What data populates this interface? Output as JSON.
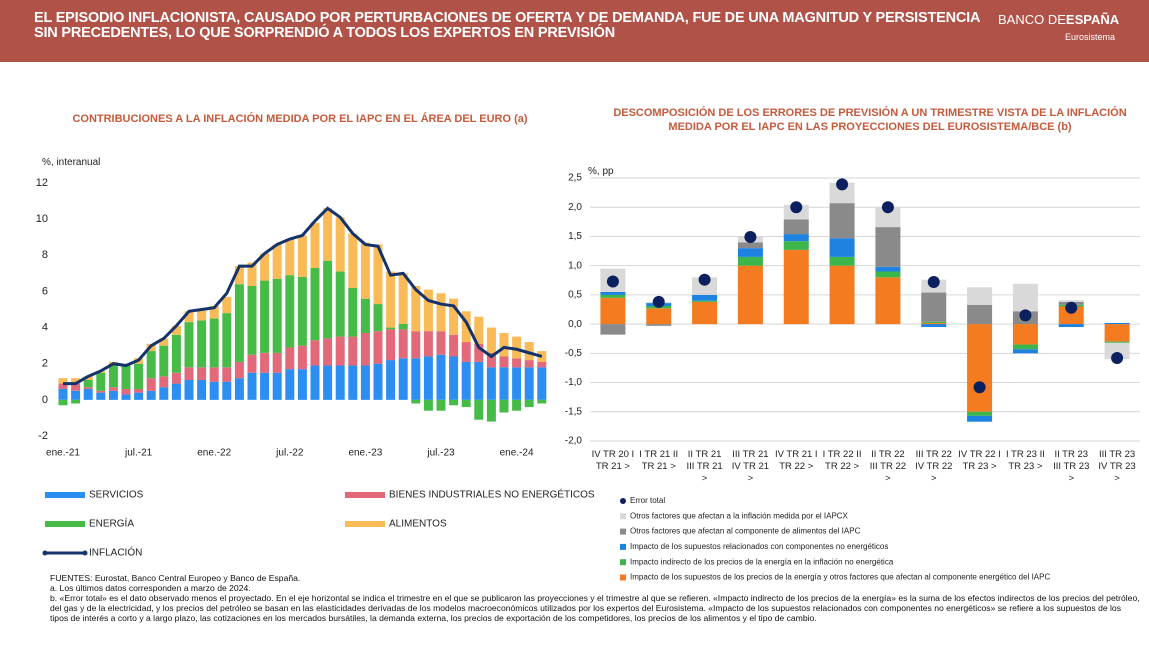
{
  "header": {
    "title": "EL EPISODIO INFLACIONISTA, CAUSADO POR PERTURBACIONES DE OFERTA Y DE DEMANDA, FUE DE UNA MAGNITUD Y PERSISTENCIA SIN PRECEDENTES, LO QUE SORPRENDIÓ A TODOS LOS EXPERTOS EN PREVISIÓN",
    "brand": "BANCO DE",
    "brand_bold": "ESPAÑA",
    "sub": "Eurosistema"
  },
  "chart_data": [
    {
      "type": "bar",
      "stacked": true,
      "title": "CONTRIBUCIONES A LA INFLACIÓN MEDIDA POR EL IAPC EN EL ÁREA DEL EURO (a)",
      "y_label": "%, interanual",
      "categories": [
        "ene.-21",
        null,
        null,
        null,
        null,
        null,
        "jul.-21",
        null,
        null,
        null,
        null,
        null,
        "ene.-22",
        null,
        null,
        null,
        null,
        null,
        "jul.-22",
        null,
        null,
        null,
        null,
        null,
        "ene.-23",
        null,
        null,
        null,
        null,
        null,
        "jul.-23",
        null,
        null,
        null,
        null,
        null,
        "ene.-24",
        null,
        null
      ],
      "series": [
        {
          "name": "SERVICIOS",
          "color": "#2b8ef0",
          "values": [
            0.6,
            0.5,
            0.6,
            0.4,
            0.5,
            0.3,
            0.4,
            0.5,
            0.7,
            0.9,
            1.1,
            1.1,
            1.0,
            1.0,
            1.2,
            1.5,
            1.5,
            1.5,
            1.7,
            1.7,
            1.9,
            1.9,
            1.9,
            1.9,
            1.9,
            2.0,
            2.2,
            2.3,
            2.3,
            2.4,
            2.5,
            2.4,
            2.1,
            2.1,
            1.8,
            1.8,
            1.8,
            1.8,
            1.8
          ]
        },
        {
          "name": "BIENES INDUSTRIALES NO ENERGÉTICOS",
          "color": "#e2697a",
          "values": [
            0.3,
            0.4,
            0.1,
            0.1,
            0.2,
            0.3,
            0.2,
            0.7,
            0.6,
            0.6,
            0.7,
            0.7,
            0.8,
            0.8,
            0.9,
            1.0,
            1.1,
            1.1,
            1.2,
            1.3,
            1.4,
            1.5,
            1.6,
            1.6,
            1.8,
            1.8,
            1.7,
            1.6,
            1.5,
            1.4,
            1.3,
            1.2,
            1.1,
            1.0,
            0.8,
            0.6,
            0.5,
            0.4,
            0.3
          ]
        },
        {
          "name": "ENERGÍA",
          "color": "#47bb47",
          "values": [
            -0.3,
            -0.2,
            0.4,
            1.0,
            1.3,
            1.3,
            1.4,
            1.5,
            1.7,
            2.1,
            2.5,
            2.6,
            2.7,
            3.0,
            4.3,
            3.8,
            4.0,
            4.1,
            4.0,
            3.8,
            4.0,
            4.3,
            3.6,
            2.7,
            1.9,
            1.5,
            0.1,
            0.3,
            -0.2,
            -0.6,
            -0.6,
            -0.3,
            -0.4,
            -1.1,
            -1.2,
            -0.7,
            -0.6,
            -0.4,
            -0.2
          ]
        },
        {
          "name": "ALIMENTOS",
          "color": "#f8bb58",
          "values": [
            0.3,
            0.3,
            0.2,
            0.1,
            0.1,
            0.1,
            0.3,
            0.4,
            0.4,
            0.5,
            0.6,
            0.6,
            0.7,
            0.9,
            1.0,
            1.3,
            1.5,
            1.9,
            2.0,
            2.3,
            2.5,
            2.9,
            3.0,
            3.0,
            3.1,
            3.3,
            3.1,
            2.8,
            2.5,
            2.3,
            2.1,
            2.0,
            1.7,
            1.5,
            1.4,
            1.3,
            1.2,
            1.0,
            0.6
          ]
        },
        {
          "name": "INFLACIÓN",
          "color": "#14336b",
          "type": "line",
          "values": [
            0.9,
            0.9,
            1.3,
            1.6,
            2.0,
            1.9,
            2.2,
            3.0,
            3.4,
            4.1,
            4.9,
            5.0,
            5.1,
            5.9,
            7.4,
            7.4,
            8.1,
            8.6,
            8.9,
            9.1,
            9.9,
            10.6,
            10.1,
            9.2,
            8.6,
            8.5,
            6.9,
            7.0,
            6.1,
            5.5,
            5.3,
            5.2,
            4.3,
            2.9,
            2.4,
            2.9,
            2.8,
            2.6,
            2.4
          ]
        }
      ],
      "ylim": [
        -2,
        12
      ],
      "yticks": [
        -2,
        0,
        2,
        4,
        6,
        8,
        10,
        12
      ],
      "grid": false
    },
    {
      "type": "bar",
      "stacked": true,
      "title": "DESCOMPOSICIÓN DE LOS ERRORES DE PREVISIÓN A UN TRIMESTRE VISTA DE LA INFLACIÓN MEDIDA POR EL IAPC EN LAS PROYECCIONES DEL EUROSISTEMA/BCE (b)",
      "y_label": "%, pp",
      "categories": [
        "IV TR 20 I TR 21 >",
        "I TR 21 II TR 21 >",
        "II TR 21 III TR 21 >",
        "III TR 21 IV TR 21 >",
        "IV TR 21 I TR 22 >",
        "I TR 22 II TR 22 >",
        "II TR 22 III TR 22 >",
        "III TR 22 IV TR 22 >",
        "IV TR 22 I TR 23 >",
        "I TR 23 II TR 23 >",
        "II TR 23 III TR 23 >",
        "III TR 23 IV TR 23 >"
      ],
      "series": [
        {
          "name": "Impacto de los supuestos de los precios de la energía y otros factores que afectan al componente energético del IAPC",
          "color": "#f47b20",
          "values": [
            0.45,
            0.27,
            0.38,
            1.0,
            1.27,
            1.0,
            0.8,
            0.02,
            -1.5,
            -0.35,
            0.3,
            -0.3
          ]
        },
        {
          "name": "Impacto indirecto de los precios de la energía en la inflación no energética",
          "color": "#3cb54a",
          "values": [
            0.05,
            0.04,
            0.02,
            0.15,
            0.15,
            0.15,
            0.1,
            0.02,
            -0.07,
            -0.08,
            0.03,
            -0.02
          ]
        },
        {
          "name": "Impacto de los supuestos relacionados con componentes no energéticos",
          "color": "#1e82e0",
          "values": [
            0.05,
            0.05,
            0.1,
            0.15,
            0.12,
            0.32,
            0.08,
            -0.05,
            -0.1,
            -0.07,
            -0.05,
            0.02
          ]
        },
        {
          "name": "Otros factores que afectan al componente de alimentos del IAPC",
          "color": "#8a8a8a",
          "values": [
            -0.18,
            -0.03,
            0.0,
            0.1,
            0.25,
            0.6,
            0.68,
            0.5,
            0.33,
            0.22,
            0.05,
            0.0
          ]
        },
        {
          "name": "Otros factores que afectan a la inflación medida por el IAPCX",
          "color": "#d9d9d9",
          "values": [
            0.4,
            0.02,
            0.3,
            0.1,
            0.25,
            0.35,
            0.35,
            0.22,
            0.3,
            0.47,
            0.03,
            -0.28
          ]
        },
        {
          "name": "Error total",
          "color": "#0c1f5e",
          "type": "dot",
          "values": [
            0.73,
            0.38,
            0.76,
            1.49,
            2.0,
            2.39,
            2.0,
            0.72,
            -1.08,
            0.15,
            0.28,
            -0.58
          ]
        }
      ],
      "legend_order": "reversed",
      "ylim": [
        -2,
        2.5
      ],
      "yticks": [
        {
          "value": -2,
          "label": "-2,0"
        },
        {
          "value": -1.5,
          "label": "-1,5"
        },
        {
          "value": -1,
          "label": "-1,0"
        },
        {
          "value": -0.5,
          "label": "-0,5"
        },
        {
          "value": 0,
          "label": "0,0"
        },
        {
          "value": 0.5,
          "label": "0,5"
        },
        {
          "value": 1,
          "label": "1,0"
        },
        {
          "value": 1.5,
          "label": "1,5"
        },
        {
          "value": 2,
          "label": "2,0"
        },
        {
          "value": 2.5,
          "label": "2,5"
        }
      ],
      "grid": true
    }
  ],
  "notes": [
    "FUENTES: Eurostat, Banco Central Europeo y Banco de España.",
    "a. Los últimos datos corresponden a marzo de 2024.",
    "b. «Error total» es el dato observado menos el proyectado. En el eje horizontal se indica el trimestre en el que se publicaron las proyecciones y el trimestre al que se refieren. «Impacto indirecto de los precios de la energía» es la suma de los efectos indirectos de los precios del petróleo, del gas y de la electricidad, y los precios del petróleo se basan en las elasticidades derivadas de los modelos macroeconómicos utilizados por los expertos del Eurosistema. «Impacto de los supuestos relacionados con componentes no energéticos» se refiere a los supuestos de los tipos de interés a corto y a largo plazo, las cotizaciones en los mercados bursátiles, la demanda externa, los precios de exportación de los competidores, los precios de los alimentos y el tipo de cambio."
  ]
}
